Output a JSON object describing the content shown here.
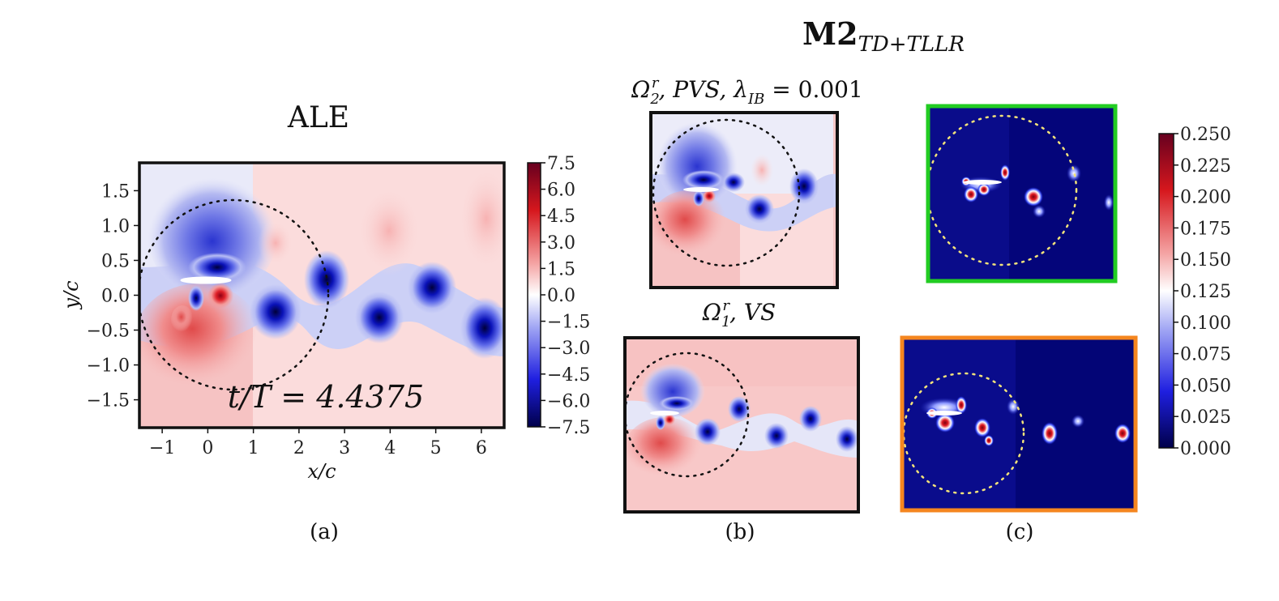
{
  "figure": {
    "main_title": "M2",
    "main_title_sub": "TD+TLLR"
  },
  "chart_data": [
    {
      "type": "heatmap",
      "title": "ALE",
      "xlabel": "x/c",
      "ylabel": "y/c",
      "x_ticks": [
        "−1",
        "0",
        "1",
        "2",
        "3",
        "4",
        "5",
        "6"
      ],
      "y_ticks": [
        "1.5",
        "1.0",
        "0.5",
        "0.0",
        "−0.5",
        "−1.0",
        "−1.5"
      ],
      "xlim": [
        -1.5,
        6.5
      ],
      "ylim": [
        -1.9,
        1.9
      ],
      "annotation": "t/T = 4.4375",
      "caption": "(a)",
      "colorbar": {
        "min": -7.5,
        "max": 7.5,
        "ticks": [
          "7.5",
          "6.0",
          "4.5",
          "3.0",
          "1.5",
          "0.0",
          "−1.5",
          "−3.0",
          "−4.5",
          "−6.0",
          "−7.5"
        ],
        "colormap": [
          "#67001f",
          "#d6171d",
          "#f4a3a3",
          "#ffffff",
          "#a3a8f4",
          "#1f1fe0",
          "#00004a"
        ]
      },
      "vortices": [
        {
          "x": 0.2,
          "y": 0.35,
          "sign": "negative"
        },
        {
          "x": -0.2,
          "y": -0.05,
          "sign": "negative"
        },
        {
          "x": 0.3,
          "y": 0.05,
          "sign": "positive"
        },
        {
          "x": 1.5,
          "y": -0.25,
          "sign": "negative"
        },
        {
          "x": 2.6,
          "y": 0.25,
          "sign": "negative"
        },
        {
          "x": 3.7,
          "y": -0.3,
          "sign": "negative"
        },
        {
          "x": 4.9,
          "y": 0.1,
          "sign": "negative"
        },
        {
          "x": 6.0,
          "y": -0.5,
          "sign": "negative"
        }
      ]
    },
    {
      "type": "heatmap",
      "title": "Ω₂ʳ, PVS, λ_IB = 0.001",
      "caption": "(b)"
    },
    {
      "type": "heatmap",
      "title": "Ω₁ʳ, VS",
      "caption": "(b)"
    },
    {
      "type": "heatmap",
      "title": "",
      "caption": "(c)",
      "colorbar": {
        "min": 0.0,
        "max": 0.25,
        "ticks": [
          "0.250",
          "0.225",
          "0.200",
          "0.175",
          "0.150",
          "0.125",
          "0.100",
          "0.075",
          "0.050",
          "0.025",
          "0.000"
        ],
        "colormap": [
          "#67001f",
          "#d6171d",
          "#f4a3a3",
          "#ffffff",
          "#a3a8f4",
          "#1f1fe0",
          "#00004a"
        ]
      },
      "frame_colors": [
        "#22cc22",
        "#f5861f"
      ]
    }
  ],
  "captions": {
    "a": "(a)",
    "b": "(b)",
    "c": "(c)"
  },
  "panel_titles": {
    "ale": "ALE",
    "b_top_omega": "Ω",
    "b_top_sub": "2",
    "b_top_sup": "r",
    "b_top_rest": ", PVS, λ",
    "b_top_lsub": "IB",
    "b_top_val": " = 0.001",
    "b_bot_omega": "Ω",
    "b_bot_sub": "1",
    "b_bot_sup": "r",
    "b_bot_rest": ", VS"
  }
}
